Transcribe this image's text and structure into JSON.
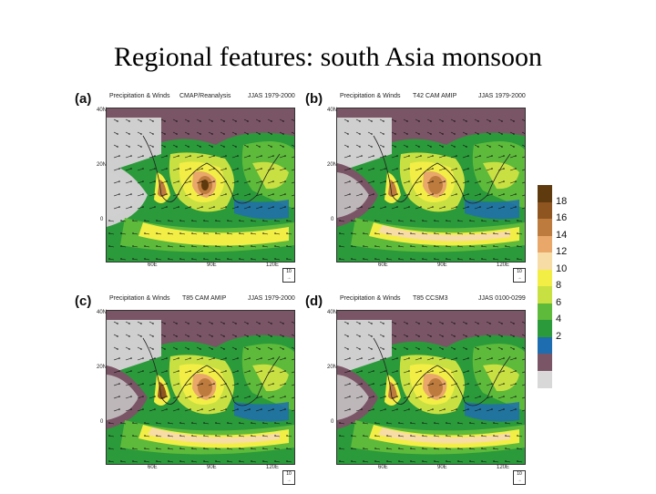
{
  "slide": {
    "title": "Regional features: south Asia monsoon"
  },
  "panels": [
    {
      "letter": "(a)",
      "left_title": "Precipitation & Winds",
      "center_title": "CMAP/Reanalysis",
      "right_title": "JJAS 1979-2000"
    },
    {
      "letter": "(b)",
      "left_title": "Precipitation & Winds",
      "center_title": "T42 CAM AMIP",
      "right_title": "JJAS 1979-2000"
    },
    {
      "letter": "(c)",
      "left_title": "Precipitation & Winds",
      "center_title": "T85 CAM AMIP",
      "right_title": "JJAS 1979-2000"
    },
    {
      "letter": "(d)",
      "left_title": "Precipitation & Winds",
      "center_title": "T85 CCSM3",
      "right_title": "JJAS 0100-0299"
    }
  ],
  "axes": {
    "lat_labels": [
      "40N",
      "20N",
      "0"
    ],
    "lon_labels": [
      "60E",
      "90E",
      "120E"
    ],
    "ref_vector": "10"
  },
  "colorbar": {
    "labels": [
      "18",
      "16",
      "14",
      "12",
      "10",
      "8",
      "6",
      "4",
      "2"
    ],
    "colors": [
      "#5e3a0e",
      "#8e5520",
      "#bd7b3d",
      "#e9a86a",
      "#f8dca5",
      "#f2ee45",
      "#c8e042",
      "#5dba3a",
      "#2a9a3a",
      "#1e6db0",
      "#7a5566",
      "#d8d8d8"
    ]
  }
}
